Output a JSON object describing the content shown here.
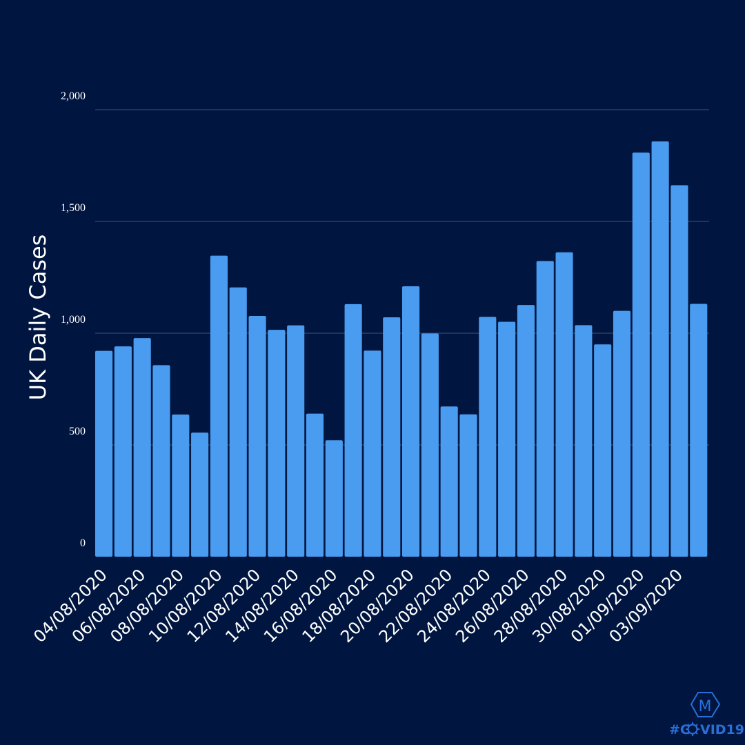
{
  "chart_data": {
    "type": "bar",
    "ylabel": "UK Daily Cases",
    "xlabel": "",
    "ylim": [
      0,
      2000
    ],
    "yticks": [
      0,
      500,
      1000,
      1500,
      2000
    ],
    "ytick_labels": [
      "0",
      "500",
      "1,000",
      "1,500",
      "2,000"
    ],
    "grid": true,
    "categories": [
      "04/08/2020",
      "05/08/2020",
      "06/08/2020",
      "07/08/2020",
      "08/08/2020",
      "09/08/2020",
      "10/08/2020",
      "11/08/2020",
      "12/08/2020",
      "13/08/2020",
      "14/08/2020",
      "15/08/2020",
      "16/08/2020",
      "17/08/2020",
      "18/08/2020",
      "19/08/2020",
      "20/08/2020",
      "21/08/2020",
      "22/08/2020",
      "23/08/2020",
      "24/08/2020",
      "25/08/2020",
      "26/08/2020",
      "27/08/2020",
      "28/08/2020",
      "29/08/2020",
      "30/08/2020",
      "31/08/2020",
      "01/09/2020",
      "02/09/2020",
      "03/09/2020",
      "04/09/2020"
    ],
    "visible_tick_labels": [
      "04/08/2020",
      "06/08/2020",
      "08/08/2020",
      "10/08/2020",
      "12/08/2020",
      "14/08/2020",
      "16/08/2020",
      "18/08/2020",
      "20/08/2020",
      "22/08/2020",
      "24/08/2020",
      "26/08/2020",
      "28/08/2020",
      "30/08/2020",
      "01/09/2020",
      "03/09/2020"
    ],
    "values": [
      921,
      941,
      978,
      857,
      636,
      555,
      1347,
      1205,
      1077,
      1015,
      1035,
      640,
      521,
      1130,
      922,
      1071,
      1210,
      999,
      672,
      637,
      1073,
      1051,
      1126,
      1323,
      1362,
      1036,
      950,
      1100,
      1808,
      1858,
      1662,
      1131
    ],
    "bar_color": "#4a9cf0",
    "grid_color": "#2a3f66"
  },
  "brand": {
    "logo_letter": "M",
    "hashtag_left": "#C",
    "hashtag_right": "VID19",
    "color": "#2a6fd6"
  }
}
